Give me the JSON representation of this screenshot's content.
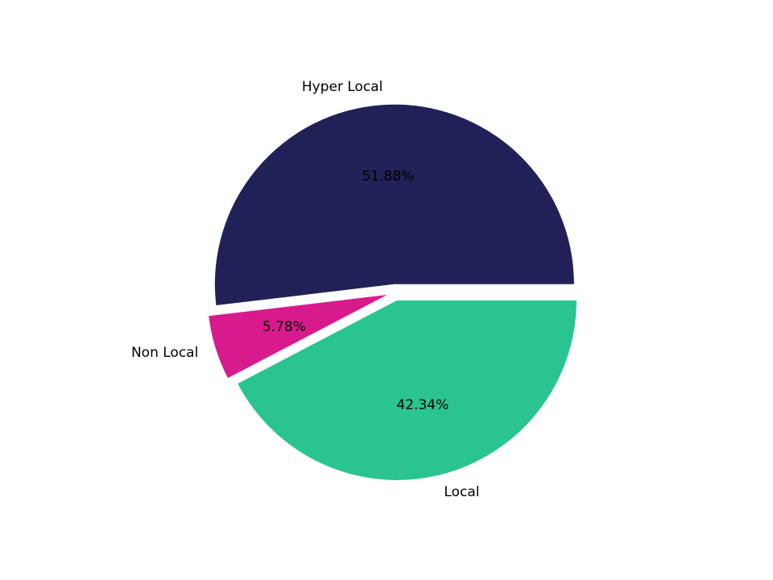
{
  "chart_data": {
    "type": "pie",
    "title": "",
    "labels": [
      "Hyper Local",
      "Non Local",
      "Local"
    ],
    "values": [
      51.88,
      5.78,
      42.34
    ],
    "pct_labels": [
      "51.88%",
      "5.78%",
      "42.34%"
    ],
    "colors": [
      "#222157",
      "#D81B8C",
      "#2AC491"
    ],
    "background": "#ffffff",
    "text_color": "#000000",
    "start_angle_deg": 0,
    "counterclockwise": true,
    "explode": [
      0.046,
      0.046,
      0.046
    ],
    "label_distance": 1.1,
    "pct_distance": 0.6,
    "legend": "none"
  }
}
